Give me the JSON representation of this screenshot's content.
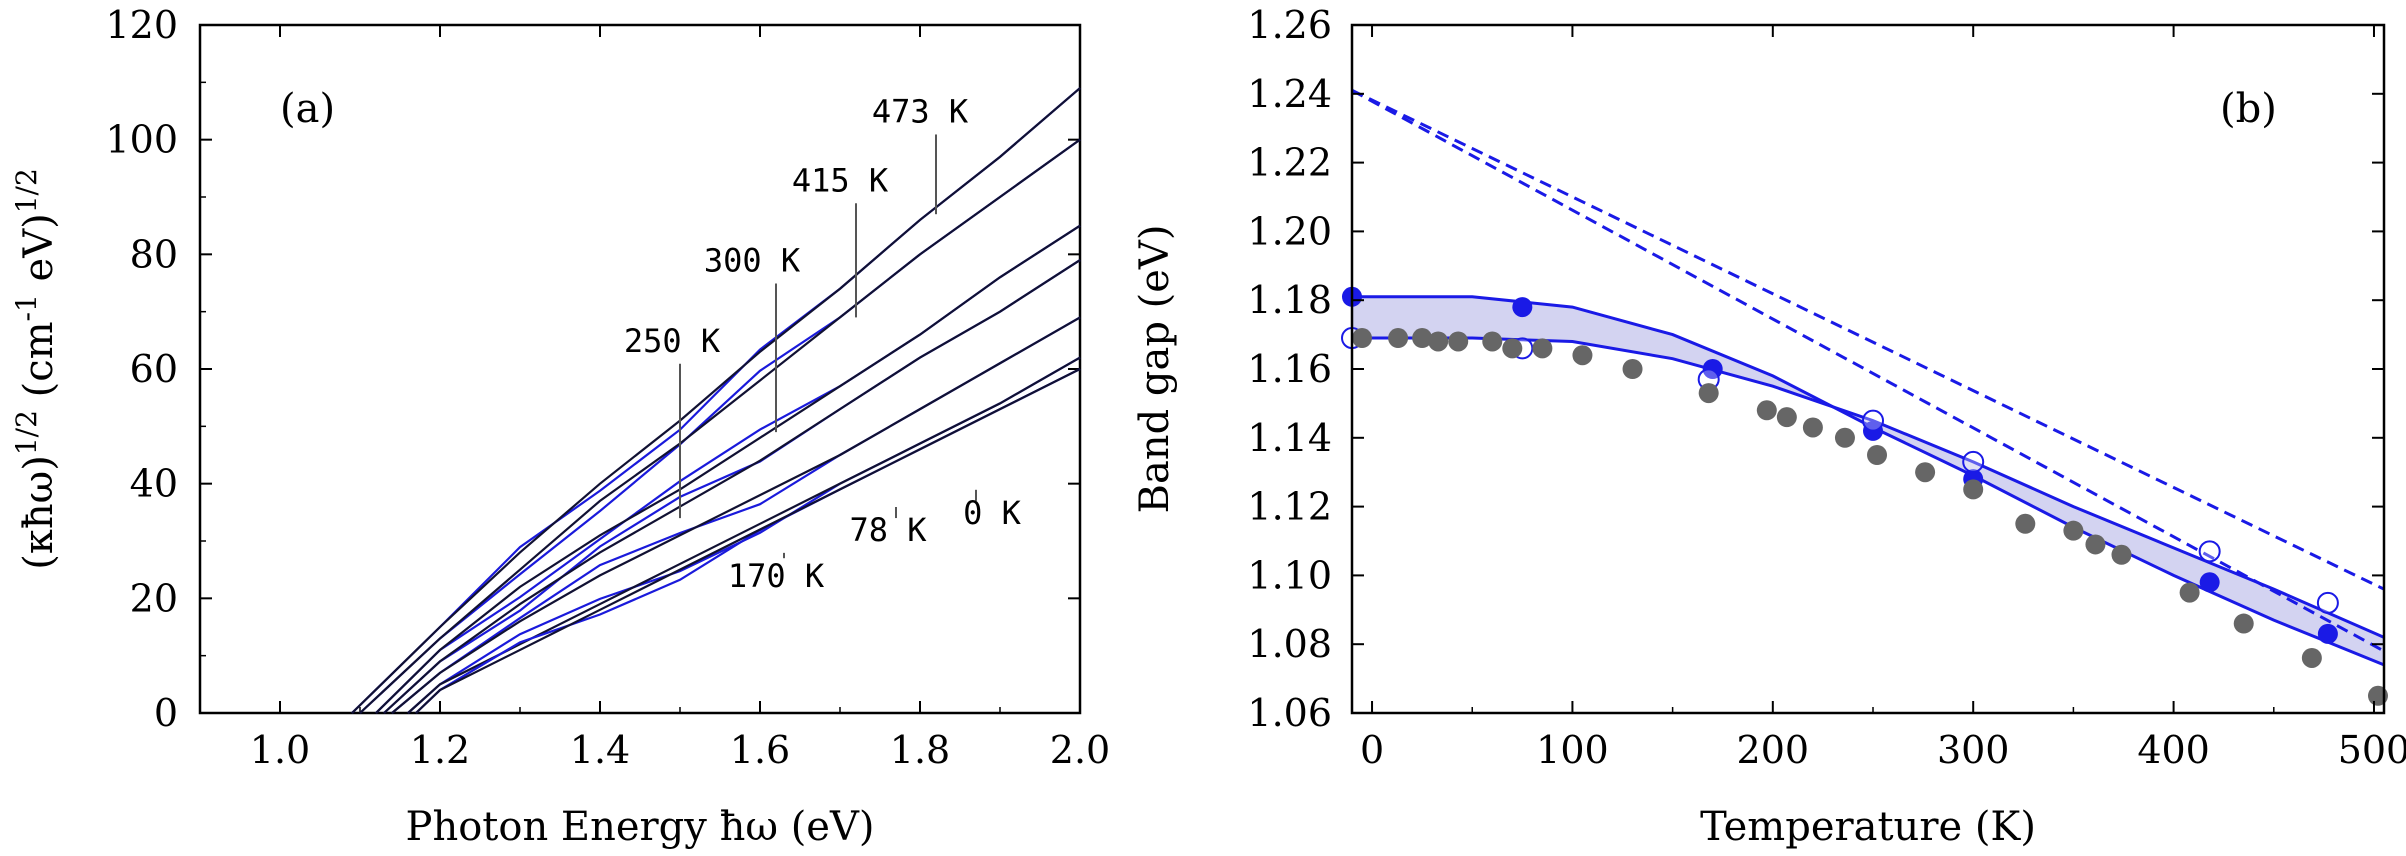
{
  "chart_data": [
    {
      "type": "line",
      "panel_label": "(a)",
      "xlabel": "Photon Energy ħω (eV)",
      "ylabel": "(κħω)^{1/2} (cm^{-1} eV)^{1/2}",
      "xlim": [
        0.9,
        2.0
      ],
      "ylim": [
        0,
        120
      ],
      "xticks": [
        "1.0",
        "1.2",
        "1.4",
        "1.6",
        "1.8",
        "2.0"
      ],
      "yticks": [
        "0",
        "20",
        "40",
        "60",
        "80",
        "100",
        "120"
      ],
      "grid": false,
      "series": [
        {
          "name": "473 K",
          "x": [
            1.09,
            1.2,
            1.3,
            1.4,
            1.5,
            1.6,
            1.7,
            1.8,
            1.9,
            2.0
          ],
          "y": [
            0,
            15,
            28,
            40,
            51,
            63,
            74,
            86,
            97,
            109
          ]
        },
        {
          "name": "415 K",
          "x": [
            1.1,
            1.2,
            1.3,
            1.4,
            1.5,
            1.6,
            1.7,
            1.8,
            1.9,
            2.0
          ],
          "y": [
            0,
            13,
            25,
            37,
            47,
            58,
            69,
            80,
            90,
            100
          ]
        },
        {
          "name": "300 K",
          "x": [
            1.12,
            1.2,
            1.3,
            1.4,
            1.5,
            1.6,
            1.7,
            1.8,
            1.9,
            2.0
          ],
          "y": [
            0,
            11,
            22,
            31,
            39,
            48,
            57,
            66,
            76,
            85
          ]
        },
        {
          "name": "250 K",
          "x": [
            1.13,
            1.2,
            1.3,
            1.4,
            1.5,
            1.6,
            1.7,
            1.8,
            1.9,
            2.0
          ],
          "y": [
            0,
            9,
            19,
            28,
            36,
            44,
            53,
            62,
            70,
            79
          ]
        },
        {
          "name": "170 K",
          "x": [
            1.14,
            1.2,
            1.3,
            1.4,
            1.5,
            1.6,
            1.7,
            1.8,
            1.9,
            2.0
          ],
          "y": [
            0,
            7,
            16,
            24,
            31,
            38,
            45,
            53,
            61,
            69
          ]
        },
        {
          "name": "78 K",
          "x": [
            1.16,
            1.2,
            1.3,
            1.4,
            1.5,
            1.6,
            1.7,
            1.8,
            1.9,
            2.0
          ],
          "y": [
            0,
            5,
            12,
            19,
            26,
            33,
            40,
            47,
            54,
            62
          ]
        },
        {
          "name": "0 K",
          "x": [
            1.17,
            1.2,
            1.3,
            1.4,
            1.5,
            1.6,
            1.7,
            1.8,
            1.9,
            2.0
          ],
          "y": [
            0,
            4,
            11,
            18,
            25,
            32,
            39,
            46,
            53,
            60
          ]
        }
      ],
      "annotations": [
        {
          "text": "473 K",
          "x": 1.82,
          "y": 87,
          "text_x": 1.8,
          "text_y": 103
        },
        {
          "text": "415 K",
          "x": 1.72,
          "y": 69,
          "text_x": 1.7,
          "text_y": 91
        },
        {
          "text": "300 K",
          "x": 1.62,
          "y": 49,
          "text_x": 1.59,
          "text_y": 77
        },
        {
          "text": "250 K",
          "x": 1.5,
          "y": 34,
          "text_x": 1.49,
          "text_y": 63
        },
        {
          "text": "170 K",
          "x": 1.63,
          "y": 27,
          "text_x": 1.62,
          "text_y": 22
        },
        {
          "text": "78 K",
          "x": 1.77,
          "y": 34,
          "text_x": 1.76,
          "text_y": 30
        },
        {
          "text": "0 K",
          "x": 1.87,
          "y": 37,
          "text_x": 1.89,
          "text_y": 33
        }
      ],
      "colors": {
        "calc": "#1a1adb",
        "exp": "#111133"
      }
    },
    {
      "type": "scatter",
      "panel_label": "(b)",
      "xlabel": "Temperature (K)",
      "ylabel": "Band gap (eV)",
      "xlim": [
        -10,
        505
      ],
      "ylim": [
        1.06,
        1.26
      ],
      "xticks": [
        "0",
        "100",
        "200",
        "300",
        "400",
        "500"
      ],
      "yticks": [
        "1.06",
        "1.08",
        "1.10",
        "1.12",
        "1.14",
        "1.16",
        "1.18",
        "1.20",
        "1.22",
        "1.24",
        "1.26"
      ],
      "grid": false,
      "series": [
        {
          "name": "",
          "marker": "filled-blue",
          "x": [
            -10,
            75,
            170,
            250,
            300,
            418,
            477
          ],
          "y": [
            1.181,
            1.178,
            1.16,
            1.142,
            1.128,
            1.098,
            1.083
          ]
        },
        {
          "name": "",
          "marker": "open-blue",
          "x": [
            -10,
            75,
            168,
            250,
            300,
            418,
            477
          ],
          "y": [
            1.169,
            1.166,
            1.157,
            1.145,
            1.133,
            1.107,
            1.092
          ]
        },
        {
          "name": "",
          "marker": "gray",
          "x": [
            -5,
            13,
            25,
            33,
            43,
            60,
            70,
            85,
            105,
            130,
            168,
            197,
            207,
            220,
            236,
            252,
            276,
            300,
            326,
            350,
            361,
            374,
            408,
            435,
            469,
            502
          ],
          "y": [
            1.169,
            1.169,
            1.169,
            1.168,
            1.168,
            1.168,
            1.166,
            1.166,
            1.164,
            1.16,
            1.153,
            1.148,
            1.146,
            1.143,
            1.14,
            1.135,
            1.13,
            1.125,
            1.115,
            1.113,
            1.109,
            1.106,
            1.095,
            1.086,
            1.076,
            1.065
          ]
        },
        {
          "name": "",
          "style": "solid",
          "x": [
            -10,
            50,
            100,
            150,
            200,
            250,
            300,
            350,
            400,
            450,
            505
          ],
          "y": [
            1.181,
            1.181,
            1.178,
            1.17,
            1.158,
            1.143,
            1.129,
            1.114,
            1.1,
            1.087,
            1.074
          ]
        },
        {
          "name": "",
          "style": "solid",
          "x": [
            -10,
            50,
            100,
            150,
            200,
            250,
            300,
            350,
            400,
            450,
            505
          ],
          "y": [
            1.169,
            1.169,
            1.168,
            1.163,
            1.155,
            1.145,
            1.133,
            1.12,
            1.108,
            1.096,
            1.082
          ]
        },
        {
          "name": "",
          "style": "dashed",
          "x": [
            -10,
            505
          ],
          "y": [
            1.241,
            1.096
          ]
        },
        {
          "name": "",
          "style": "dashed",
          "x": [
            -10,
            505
          ],
          "y": [
            1.241,
            1.078
          ]
        }
      ],
      "colors": {
        "blue": "#1a1ae6",
        "fill": "#c8c8ee",
        "gray": "#666666"
      }
    }
  ]
}
